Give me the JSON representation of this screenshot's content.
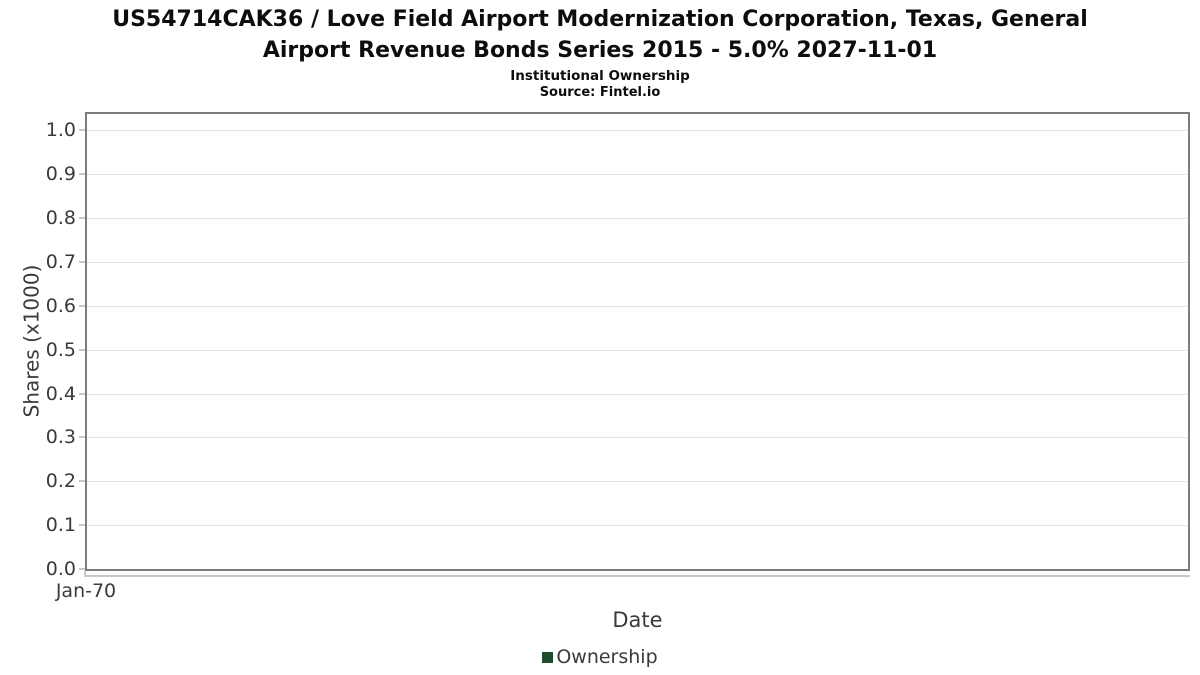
{
  "header": {
    "title_line1": "US54714CAK36 / Love Field Airport Modernization Corporation, Texas, General",
    "title_line2": "Airport Revenue Bonds Series 2015 - 5.0% 2027-11-01",
    "subtitle": "Institutional Ownership",
    "source": "Source: Fintel.io"
  },
  "chart_data": {
    "type": "line",
    "title": "US54714CAK36 / Love Field Airport Modernization Corporation, Texas, General Airport Revenue Bonds Series 2015 - 5.0% 2027-11-01",
    "subtitle": "Institutional Ownership",
    "source": "Source: Fintel.io",
    "xlabel": "Date",
    "ylabel": "Shares (x1000)",
    "x_tick_labels": [
      "Jan-70"
    ],
    "y_ticks": [
      {
        "value": 0.0,
        "label": "0.0"
      },
      {
        "value": 0.1,
        "label": "0.1"
      },
      {
        "value": 0.2,
        "label": "0.2"
      },
      {
        "value": 0.3,
        "label": "0.3"
      },
      {
        "value": 0.4,
        "label": "0.4"
      },
      {
        "value": 0.5,
        "label": "0.5"
      },
      {
        "value": 0.6,
        "label": "0.6"
      },
      {
        "value": 0.7,
        "label": "0.7"
      },
      {
        "value": 0.8,
        "label": "0.8"
      },
      {
        "value": 0.9,
        "label": "0.9"
      },
      {
        "value": 1.0,
        "label": "1.0"
      }
    ],
    "ylim": [
      0,
      1.042
    ],
    "grid": "horizontal",
    "legend_position": "bottom-center",
    "series": [
      {
        "name": "Ownership",
        "color": "#1f4d2b",
        "points": []
      }
    ]
  },
  "legend": {
    "items": [
      {
        "label": "Ownership",
        "color": "#1f4d2b"
      }
    ]
  },
  "colors": {
    "background": "#ffffff",
    "title_text": "#0d0d0d",
    "axis_text": "#3a3a3a",
    "plot_border": "#7c7c7c",
    "gridline": "#e4e4e4",
    "tick": "#c9c9c9",
    "series_ownership": "#1f4d2b"
  }
}
